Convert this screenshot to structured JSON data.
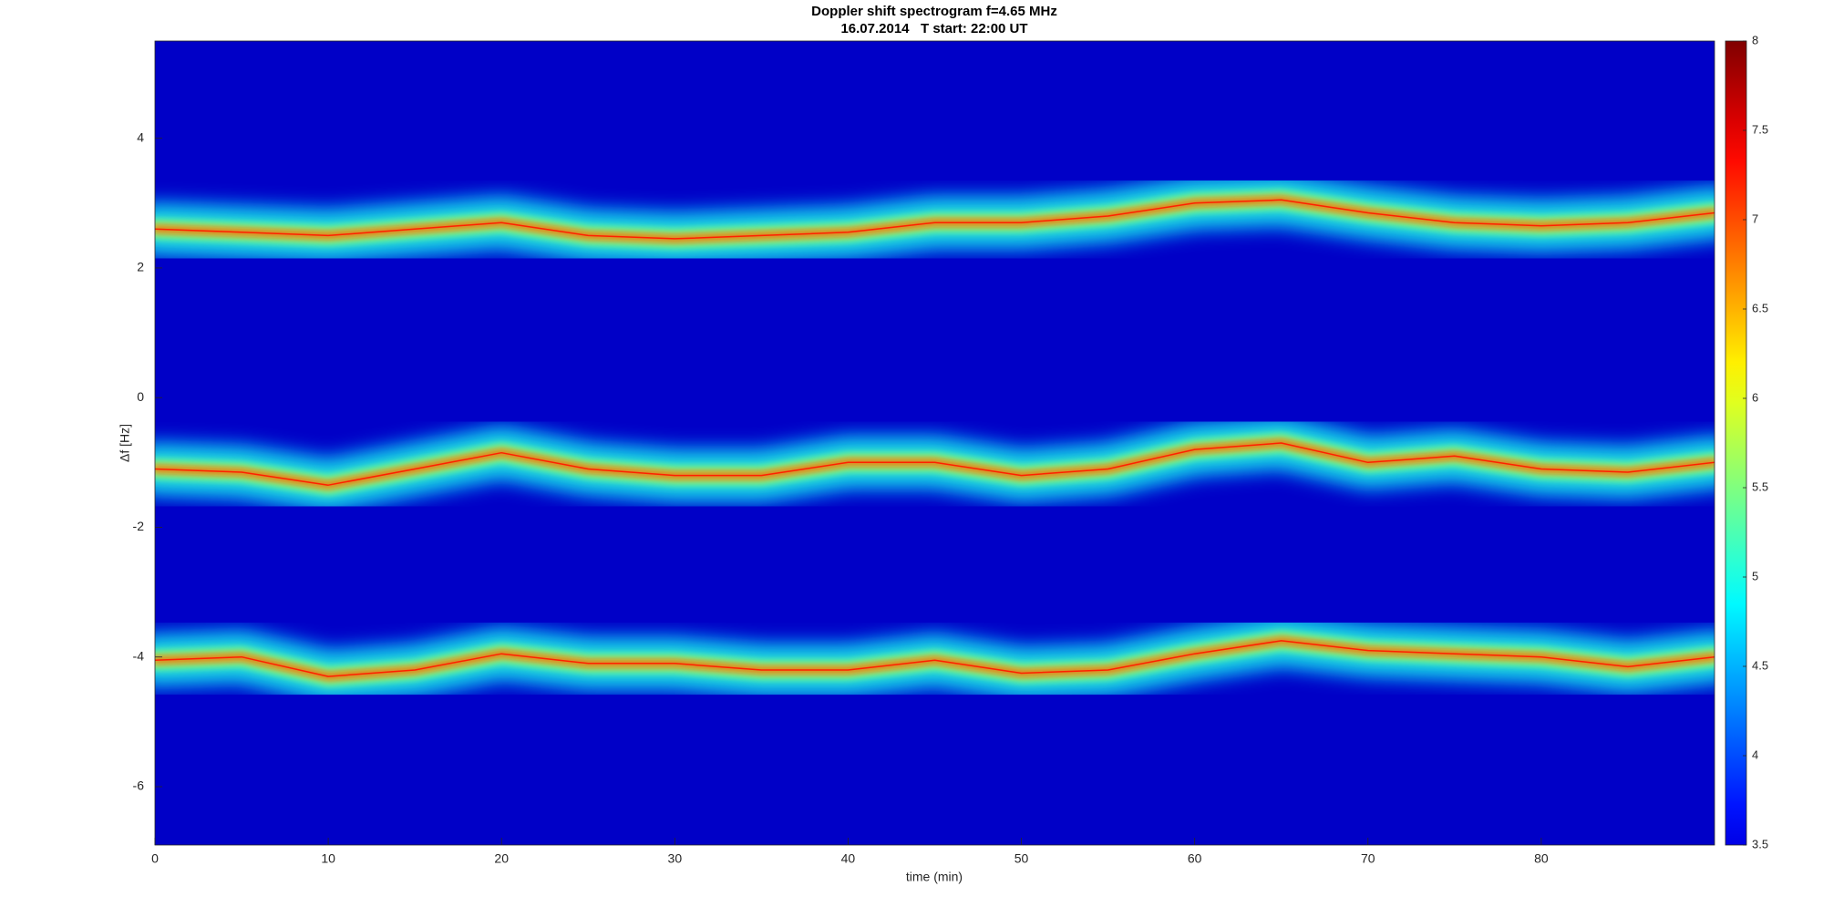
{
  "chart_data": {
    "type": "spectrogram",
    "title": "Doppler shift spectrogram f=4.65 MHz",
    "subtitle": "16.07.2014   T start: 22:00 UT",
    "xlabel": "time (min)",
    "ylabel": "Δf [Hz]",
    "colormap": "jet",
    "xlim": [
      0,
      90
    ],
    "xticks": [
      0,
      10,
      20,
      30,
      40,
      50,
      60,
      70,
      80
    ],
    "ylim": [
      -6.9,
      5.5
    ],
    "yticks": [
      -6,
      -4,
      -2,
      0,
      2,
      4
    ],
    "clim": [
      3.5,
      8
    ],
    "cticks": [
      3.5,
      4,
      4.5,
      5,
      5.5,
      6,
      6.5,
      7,
      7.5,
      8
    ],
    "x": [
      0,
      5,
      10,
      15,
      20,
      25,
      30,
      35,
      40,
      45,
      50,
      55,
      60,
      65,
      70,
      75,
      80,
      85,
      90
    ],
    "series": [
      {
        "color": "#ff2000",
        "values": [
          2.6,
          2.55,
          2.5,
          2.6,
          2.7,
          2.5,
          2.45,
          2.5,
          2.55,
          2.7,
          2.7,
          2.8,
          3.0,
          3.05,
          2.85,
          2.7,
          2.65,
          2.7,
          2.85
        ]
      },
      {
        "color": "#ff2000",
        "values": [
          -1.1,
          -1.15,
          -1.35,
          -1.1,
          -0.85,
          -1.1,
          -1.2,
          -1.2,
          -1.0,
          -1.0,
          -1.2,
          -1.1,
          -0.8,
          -0.7,
          -1.0,
          -0.9,
          -1.1,
          -1.15,
          -1.0
        ]
      },
      {
        "color": "#ff2000",
        "values": [
          -4.05,
          -4.0,
          -4.3,
          -4.2,
          -3.95,
          -4.1,
          -4.1,
          -4.2,
          -4.2,
          -4.05,
          -4.25,
          -4.2,
          -3.95,
          -3.75,
          -3.9,
          -3.95,
          -4.0,
          -4.15,
          -4.0
        ]
      }
    ]
  }
}
